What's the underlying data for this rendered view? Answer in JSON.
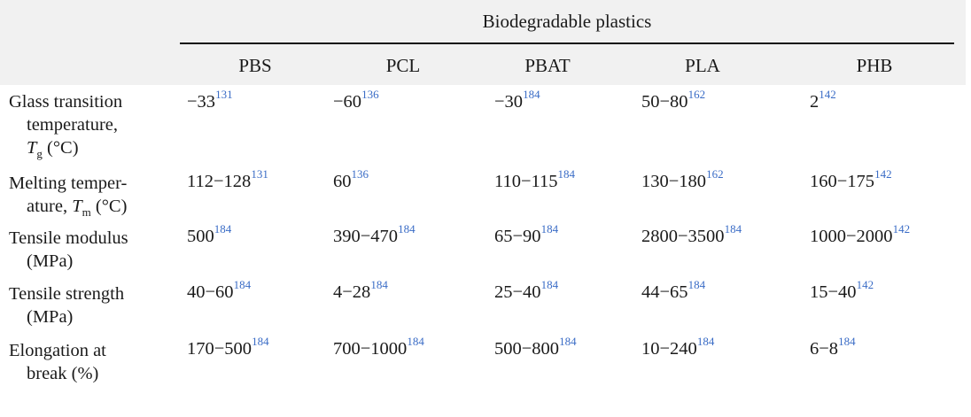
{
  "group_header": "Biodegradable plastics",
  "columns": [
    "PBS",
    "PCL",
    "PBAT",
    "PLA",
    "PHB"
  ],
  "rows": [
    {
      "label_lines": [
        "Glass transition",
        "temperature,"
      ],
      "symbol": "T",
      "subscript": "g",
      "unit": "(°C)",
      "cells": [
        {
          "value": "−33",
          "ref": "131"
        },
        {
          "value": "−60",
          "ref": "136"
        },
        {
          "value": "−30",
          "ref": "184"
        },
        {
          "value": "50−80",
          "ref": "162"
        },
        {
          "value": "2",
          "ref": "142"
        }
      ]
    },
    {
      "label_lines": [
        "Melting temper-",
        "ature,"
      ],
      "symbol": "T",
      "subscript": "m",
      "unit": "(°C)",
      "cells": [
        {
          "value": "112−128",
          "ref": "131"
        },
        {
          "value": "60",
          "ref": "136"
        },
        {
          "value": "110−115",
          "ref": "184"
        },
        {
          "value": "130−180",
          "ref": "162"
        },
        {
          "value": "160−175",
          "ref": "142"
        }
      ]
    },
    {
      "label_lines": [
        "Tensile modulus",
        "(MPa)"
      ],
      "cells": [
        {
          "value": "500",
          "ref": "184"
        },
        {
          "value": "390−470",
          "ref": "184"
        },
        {
          "value": "65−90",
          "ref": "184"
        },
        {
          "value": "2800−3500",
          "ref": "184"
        },
        {
          "value": "1000−2000",
          "ref": "142"
        }
      ]
    },
    {
      "label_lines": [
        "Tensile strength",
        "(MPa)"
      ],
      "cells": [
        {
          "value": "40−60",
          "ref": "184"
        },
        {
          "value": "4−28",
          "ref": "184"
        },
        {
          "value": "25−40",
          "ref": "184"
        },
        {
          "value": "44−65",
          "ref": "184"
        },
        {
          "value": "15−40",
          "ref": "142"
        }
      ]
    },
    {
      "label_lines": [
        "Elongation at",
        "break (%)"
      ],
      "cells": [
        {
          "value": "170−500",
          "ref": "184"
        },
        {
          "value": "700−1000",
          "ref": "184"
        },
        {
          "value": "500−800",
          "ref": "184"
        },
        {
          "value": "10−240",
          "ref": "184"
        },
        {
          "value": "6−8",
          "ref": "184"
        }
      ]
    }
  ]
}
